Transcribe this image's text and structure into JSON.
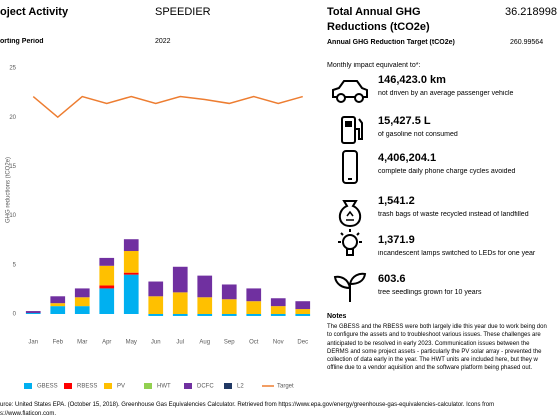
{
  "header": {
    "activity_label": "oject Activity",
    "activity_value": "SPEEDIER",
    "period_label": "orting Period",
    "period_value": "2022",
    "total_label": "Total Annual GHG Reductions (tCO2e)",
    "total_value": "36.218998",
    "target_label": "Annual GHG Reduction Target (tCO2e)",
    "target_value": "260.99564"
  },
  "chart_data": {
    "type": "bar",
    "stacked": true,
    "ylabel": "GHG reductions (tCO2e)",
    "categories": [
      "Jan",
      "Feb",
      "Mar",
      "Apr",
      "May",
      "Jun",
      "Jul",
      "Aug",
      "Sep",
      "Oct",
      "Nov",
      "Dec"
    ],
    "ylim": [
      -3,
      25
    ],
    "yticks": [
      0,
      5,
      10,
      15,
      20,
      25
    ],
    "grid": false,
    "series": [
      {
        "name": "GBESS",
        "color": "#00b0f0",
        "values": [
          0.1,
          0.8,
          0.8,
          2.6,
          4.0,
          -0.2,
          -0.2,
          -0.2,
          -0.2,
          -0.2,
          -0.2,
          -0.2
        ]
      },
      {
        "name": "RBESS",
        "color": "#ff0000",
        "values": [
          0,
          0,
          0,
          0.3,
          0.2,
          0,
          0,
          0,
          0,
          0,
          0,
          0
        ]
      },
      {
        "name": "PV",
        "color": "#ffc000",
        "values": [
          0,
          0.3,
          0.9,
          2.0,
          2.2,
          1.8,
          2.2,
          1.7,
          1.5,
          1.3,
          0.8,
          0.5
        ]
      },
      {
        "name": "HWT",
        "color": "#92d050",
        "values": [
          0,
          0,
          0,
          0,
          0,
          0,
          0,
          0,
          0,
          0,
          0,
          0
        ]
      },
      {
        "name": "DCFC",
        "color": "#7030a0",
        "values": [
          0.2,
          0.7,
          0.9,
          0.8,
          1.2,
          1.5,
          2.6,
          2.2,
          1.5,
          1.3,
          0.8,
          0.8
        ]
      },
      {
        "name": "L2",
        "color": "#203864",
        "values": [
          0,
          0,
          0,
          0,
          0,
          0,
          0,
          0,
          0,
          0,
          0,
          0
        ]
      },
      {
        "name": "Target",
        "color": "#ed7d31",
        "kind": "line",
        "values": [
          22.1,
          20,
          22.1,
          21.4,
          22.1,
          21.4,
          22.1,
          21.8,
          21.4,
          22.1,
          21.4,
          22.1
        ]
      }
    ]
  },
  "equivalents": {
    "title": "Monthly impact equivalent to*:",
    "items": [
      {
        "value": "146,423.0 km",
        "text": "not driven by an average passenger vehicle"
      },
      {
        "value": "15,427.5 L",
        "text": "of gasoline not consumed"
      },
      {
        "value": "4,406,204.1",
        "text": "complete daily phone charge cycles avoided"
      },
      {
        "value": "1,541.2",
        "text": "trash bags of waste recycled instead of landfilled"
      },
      {
        "value": "1,371.9",
        "text": "incandescent lamps switched to LEDs for one year"
      },
      {
        "value": "603.6",
        "text": "tree seedlings grown for 10 years"
      }
    ]
  },
  "notes": {
    "title": "Notes",
    "lines": [
      "The GBESS and the RBESS were both largely idle this year due to work being don",
      "to configure the assets and to troubleshoot various issues. These challenges are",
      "anticipated to be resolved in early 2023. Communication issues between the",
      "DERMS and some project assets - particularly the PV solar array - prevented the",
      "collection of data early in the year. The HWT units are included here, but they w",
      "offline due to a vendor aquisition and the software platform being phased out."
    ]
  },
  "source": {
    "lines": [
      "urce: United States EPA. (October 15, 2018). Greenhouse Gas Equivalencies Calculator. Retrieved from https://www.epa.gov/energy/greenhouse-gas-equivalencies-calculator. Icons from",
      "s://www.flaticon.com."
    ]
  }
}
